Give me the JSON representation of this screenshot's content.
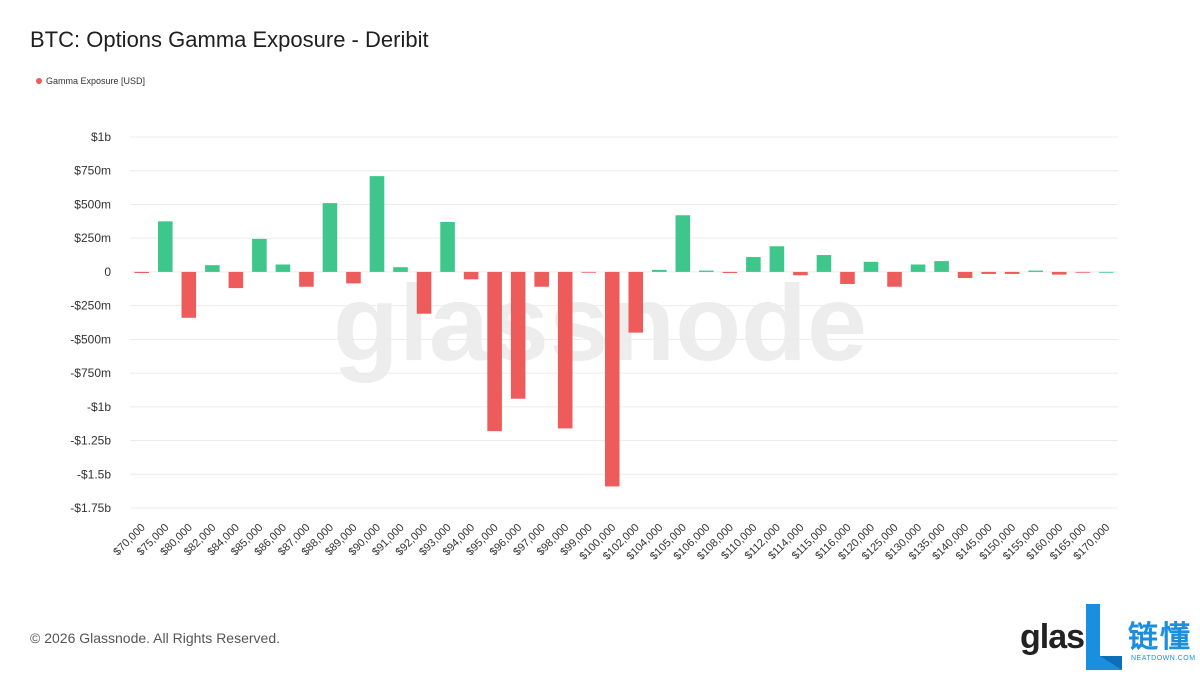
{
  "chart_data": {
    "type": "bar",
    "title": "BTC: Options Gamma Exposure - Deribit",
    "legend": {
      "label": "Gamma Exposure [USD]",
      "placement": "top-left"
    },
    "categories": [
      "$70,000",
      "$75,000",
      "$80,000",
      "$82,000",
      "$84,000",
      "$85,000",
      "$86,000",
      "$87,000",
      "$88,000",
      "$89,000",
      "$90,000",
      "$91,000",
      "$92,000",
      "$93,000",
      "$94,000",
      "$95,000",
      "$96,000",
      "$97,000",
      "$98,000",
      "$99,000",
      "$100,000",
      "$102,000",
      "$104,000",
      "$105,000",
      "$106,000",
      "$108,000",
      "$110,000",
      "$112,000",
      "$114,000",
      "$115,000",
      "$116,000",
      "$120,000",
      "$125,000",
      "$130,000",
      "$135,000",
      "$140,000",
      "$145,000",
      "$150,000",
      "$155,000",
      "$160,000",
      "$165,000",
      "$170,000"
    ],
    "values": [
      -8,
      375,
      -340,
      50,
      -120,
      245,
      55,
      -110,
      510,
      -85,
      710,
      35,
      -310,
      370,
      -55,
      -1180,
      -940,
      -110,
      -1160,
      -5,
      -1590,
      -450,
      15,
      420,
      10,
      -8,
      110,
      190,
      -25,
      125,
      -90,
      75,
      -110,
      55,
      80,
      -45,
      -15,
      -15,
      10,
      -20,
      -5,
      0
    ],
    "unit": "millions USD",
    "ylim": [
      -1750,
      1000
    ],
    "yticks": [
      1000,
      750,
      500,
      250,
      0,
      -250,
      -500,
      -750,
      -1000,
      -1250,
      -1500,
      -1750
    ],
    "ytick_labels": [
      "$1b",
      "$750m",
      "$500m",
      "$250m",
      "0",
      "-$250m",
      "-$500m",
      "-$750m",
      "-$1b",
      "-$1.25b",
      "-$1.5b",
      "-$1.75b"
    ],
    "grid": true,
    "colors": {
      "positive": "#3ec68b",
      "negative": "#ee5b5b",
      "grid": "#ececec"
    }
  },
  "watermark": "glassnode",
  "footer": {
    "copyright": "© 2026 Glassnode. All Rights Reserved.",
    "logo_text": "glas",
    "partner_logo": "链懂",
    "partner_sub": "NEATDOWN.COM"
  }
}
